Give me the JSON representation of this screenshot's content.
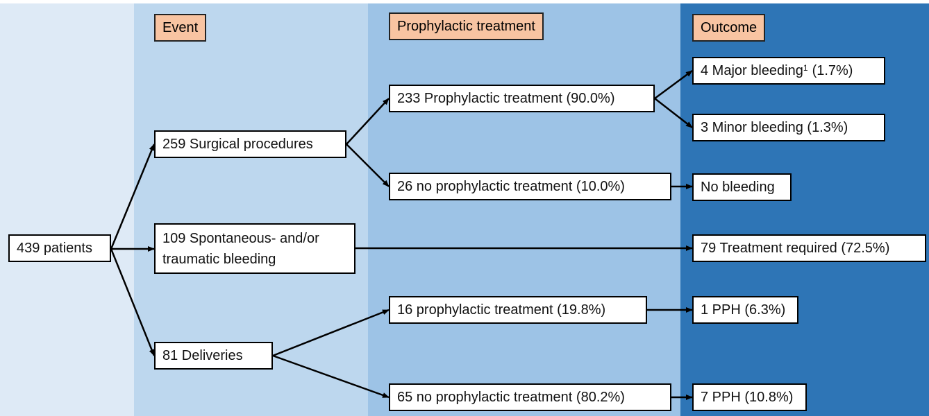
{
  "headers": {
    "event": "Event",
    "treatment": "Prophylactic treatment",
    "outcome": "Outcome"
  },
  "nodes": {
    "patients": {
      "label": "439 patients"
    },
    "surgical": {
      "label": "259 Surgical procedures"
    },
    "spontaneous": {
      "lines": [
        "109 Spontaneous- and/or",
        "traumatic bleeding"
      ]
    },
    "deliveries": {
      "label": "81 Deliveries"
    },
    "surgical_treated": {
      "label": "233 Prophylactic treatment (90.0%)"
    },
    "surgical_untreated": {
      "label": "26 no prophylactic treatment (10.0%)"
    },
    "deliveries_treated": {
      "label": "16 prophylactic treatment (19.8%)"
    },
    "deliveries_untreated": {
      "label": "65 no prophylactic treatment (80.2%)"
    },
    "major_bleeding": {
      "label": "4 Major bleeding",
      "footnote": "1",
      "detail": "(1.7%)"
    },
    "minor_bleeding": {
      "label": "3 Minor bleeding (1.3%)"
    },
    "no_bleeding": {
      "label": "No bleeding"
    },
    "treatment_required": {
      "label": "79 Treatment required (72.5%)"
    },
    "pph_treated": {
      "label": "1 PPH (6.3%)"
    },
    "pph_untreated": {
      "label": "7 PPH (10.8%)"
    }
  }
}
